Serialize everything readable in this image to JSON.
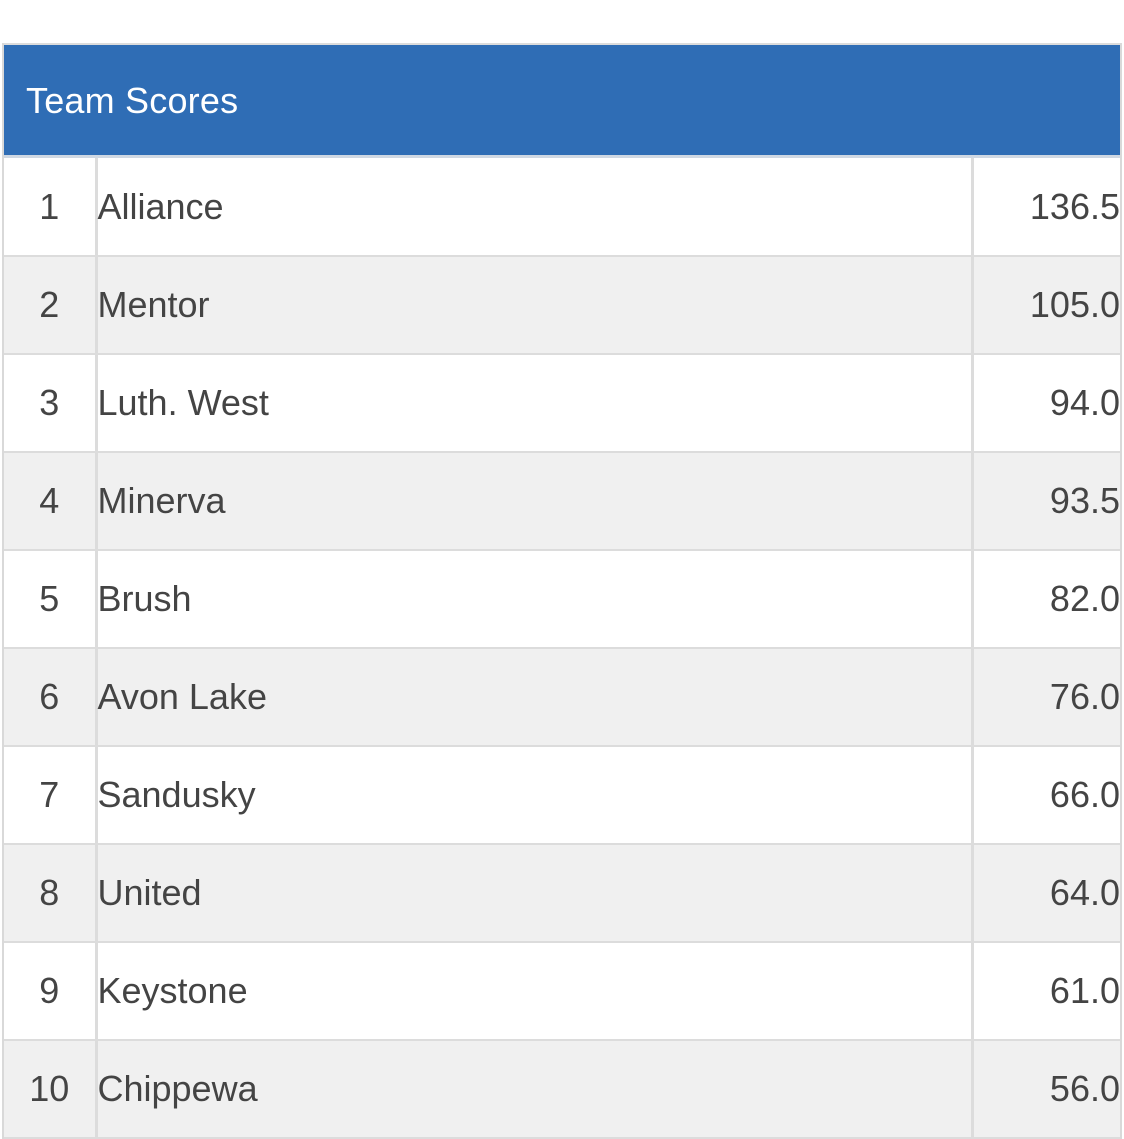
{
  "header": {
    "title": "Team Scores"
  },
  "columns": [
    "rank",
    "team",
    "score"
  ],
  "rows": [
    {
      "rank": "1",
      "team": "Alliance",
      "score": "136.5"
    },
    {
      "rank": "2",
      "team": "Mentor",
      "score": "105.0"
    },
    {
      "rank": "3",
      "team": "Luth. West",
      "score": "94.0"
    },
    {
      "rank": "4",
      "team": "Minerva",
      "score": "93.5"
    },
    {
      "rank": "5",
      "team": "Brush",
      "score": "82.0"
    },
    {
      "rank": "6",
      "team": "Avon Lake",
      "score": "76.0"
    },
    {
      "rank": "7",
      "team": "Sandusky",
      "score": "66.0"
    },
    {
      "rank": "8",
      "team": "United",
      "score": "64.0"
    },
    {
      "rank": "9",
      "team": "Keystone",
      "score": "61.0"
    },
    {
      "rank": "10",
      "team": "Chippewa",
      "score": "56.0"
    }
  ],
  "colors": {
    "header_bg": "#2f6db5",
    "header_text": "#ffffff",
    "row_alt_bg": "#f0f0f0",
    "text": "#444444",
    "border": "#dcdcdc"
  }
}
